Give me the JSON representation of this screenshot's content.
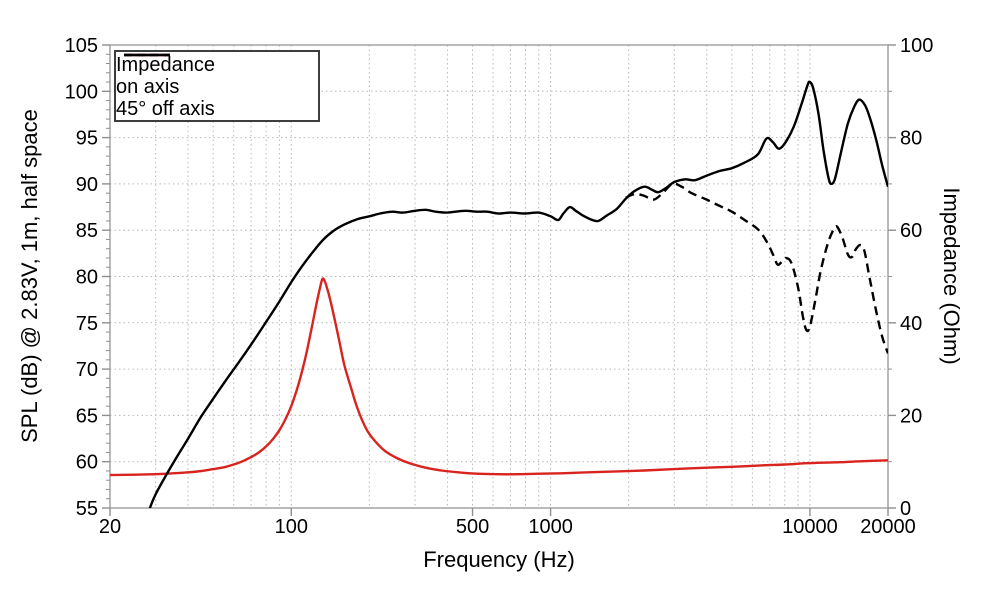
{
  "figure": {
    "background": "#ffffff",
    "frame_color": "#9c9c9c",
    "grid_color": "#b7b7b7",
    "tick_color": "#8f8f8f",
    "text_color": "#000000"
  },
  "chart_data": {
    "type": "line",
    "title": "",
    "x_axis": {
      "label": "Frequency (Hz)",
      "scale": "log",
      "min": 20,
      "max": 20000,
      "major_ticks": [
        20,
        100,
        500,
        1000,
        10000,
        20000
      ],
      "tick_labels": [
        "20",
        "100",
        "500",
        "1000",
        "10000",
        "20000"
      ]
    },
    "y_axis_left": {
      "label": "SPL (dB) @ 2.83V, 1m, half space",
      "min": 55,
      "max": 105,
      "major_step": 5,
      "minor_step": 1,
      "ticks": [
        55,
        60,
        65,
        70,
        75,
        80,
        85,
        90,
        95,
        100,
        105
      ]
    },
    "y_axis_right": {
      "label": "Impedance (Ohm)",
      "min": 0,
      "max": 100,
      "major_step": 20,
      "minor_step": 10,
      "ticks": [
        0,
        20,
        40,
        60,
        80,
        100
      ]
    },
    "grid": {
      "horizontal_db": [
        60,
        65,
        70,
        75,
        80,
        85,
        90,
        95,
        100
      ],
      "vertical": "log-minor"
    },
    "legend": {
      "position": "top-left",
      "entries": [
        {
          "label": "Impedance",
          "color": "#d9231e",
          "style": "solid"
        },
        {
          "label": "on axis",
          "color": "#000000",
          "style": "solid"
        },
        {
          "label": "45° off axis",
          "color": "#000000",
          "style": "dashed"
        }
      ]
    },
    "series": [
      {
        "name": "Impedance",
        "axis": "right",
        "unit": "Ohm",
        "color": "#d9231e",
        "style": "solid",
        "points": [
          [
            20,
            7.1
          ],
          [
            25,
            7.2
          ],
          [
            30,
            7.3
          ],
          [
            35,
            7.5
          ],
          [
            40,
            7.7
          ],
          [
            45,
            8.0
          ],
          [
            50,
            8.4
          ],
          [
            55,
            8.8
          ],
          [
            60,
            9.4
          ],
          [
            65,
            10.1
          ],
          [
            70,
            11.0
          ],
          [
            75,
            12.0
          ],
          [
            80,
            13.3
          ],
          [
            85,
            14.9
          ],
          [
            90,
            16.8
          ],
          [
            95,
            19.2
          ],
          [
            100,
            22.0
          ],
          [
            105,
            25.5
          ],
          [
            110,
            29.5
          ],
          [
            115,
            34.0
          ],
          [
            120,
            39.0
          ],
          [
            125,
            44.0
          ],
          [
            129,
            47.5
          ],
          [
            132,
            49.5
          ],
          [
            135,
            48.8
          ],
          [
            139,
            46.5
          ],
          [
            144,
            43.0
          ],
          [
            152,
            37.0
          ],
          [
            160,
            31.0
          ],
          [
            170,
            26.0
          ],
          [
            180,
            21.5
          ],
          [
            195,
            17.0
          ],
          [
            210,
            14.5
          ],
          [
            230,
            12.3
          ],
          [
            255,
            10.8
          ],
          [
            285,
            9.7
          ],
          [
            330,
            8.7
          ],
          [
            380,
            8.1
          ],
          [
            440,
            7.7
          ],
          [
            520,
            7.4
          ],
          [
            620,
            7.3
          ],
          [
            750,
            7.3
          ],
          [
            900,
            7.4
          ],
          [
            1100,
            7.5
          ],
          [
            1400,
            7.7
          ],
          [
            1800,
            7.9
          ],
          [
            2300,
            8.1
          ],
          [
            3000,
            8.4
          ],
          [
            4000,
            8.7
          ],
          [
            5000,
            8.9
          ],
          [
            6500,
            9.2
          ],
          [
            8000,
            9.4
          ],
          [
            10000,
            9.7
          ],
          [
            13000,
            9.9
          ],
          [
            16000,
            10.1
          ],
          [
            20000,
            10.3
          ]
        ]
      },
      {
        "name": "on axis",
        "axis": "left",
        "unit": "dB",
        "color": "#000000",
        "style": "solid",
        "points": [
          [
            27.5,
            53.5
          ],
          [
            28.5,
            55.0
          ],
          [
            30,
            56.5
          ],
          [
            33,
            58.6
          ],
          [
            36,
            60.4
          ],
          [
            40,
            62.5
          ],
          [
            45,
            64.9
          ],
          [
            50,
            66.8
          ],
          [
            56,
            68.8
          ],
          [
            63,
            70.8
          ],
          [
            71,
            72.9
          ],
          [
            80,
            75.1
          ],
          [
            90,
            77.3
          ],
          [
            100,
            79.4
          ],
          [
            110,
            81.1
          ],
          [
            120,
            82.5
          ],
          [
            132,
            83.9
          ],
          [
            145,
            84.9
          ],
          [
            160,
            85.6
          ],
          [
            180,
            86.2
          ],
          [
            200,
            86.5
          ],
          [
            220,
            86.8
          ],
          [
            245,
            87.0
          ],
          [
            270,
            86.9
          ],
          [
            300,
            87.1
          ],
          [
            330,
            87.2
          ],
          [
            360,
            87.0
          ],
          [
            395,
            86.9
          ],
          [
            430,
            87.0
          ],
          [
            470,
            87.1
          ],
          [
            520,
            87.0
          ],
          [
            570,
            87.0
          ],
          [
            630,
            86.8
          ],
          [
            700,
            86.9
          ],
          [
            800,
            86.8
          ],
          [
            900,
            86.9
          ],
          [
            1000,
            86.5
          ],
          [
            1070,
            86.1
          ],
          [
            1120,
            86.8
          ],
          [
            1185,
            87.5
          ],
          [
            1250,
            87.1
          ],
          [
            1330,
            86.6
          ],
          [
            1450,
            86.1
          ],
          [
            1530,
            86.0
          ],
          [
            1650,
            86.6
          ],
          [
            1800,
            87.3
          ],
          [
            1950,
            88.4
          ],
          [
            2100,
            89.2
          ],
          [
            2300,
            89.7
          ],
          [
            2450,
            89.4
          ],
          [
            2600,
            89.1
          ],
          [
            2800,
            89.6
          ],
          [
            3000,
            90.2
          ],
          [
            3300,
            90.5
          ],
          [
            3600,
            90.4
          ],
          [
            4000,
            90.9
          ],
          [
            4500,
            91.4
          ],
          [
            5000,
            91.7
          ],
          [
            5600,
            92.3
          ],
          [
            6300,
            93.2
          ],
          [
            6800,
            94.9
          ],
          [
            7200,
            94.5
          ],
          [
            7600,
            93.8
          ],
          [
            8100,
            94.6
          ],
          [
            8700,
            96.3
          ],
          [
            9300,
            98.7
          ],
          [
            9800,
            100.7
          ],
          [
            10000,
            101.0
          ],
          [
            10300,
            100.3
          ],
          [
            10800,
            97.5
          ],
          [
            11300,
            93.5
          ],
          [
            11800,
            90.6
          ],
          [
            12100,
            90.0
          ],
          [
            12500,
            90.6
          ],
          [
            13200,
            93.5
          ],
          [
            14000,
            96.5
          ],
          [
            14800,
            98.3
          ],
          [
            15500,
            99.1
          ],
          [
            16300,
            98.5
          ],
          [
            17000,
            97.2
          ],
          [
            18000,
            94.8
          ],
          [
            19000,
            92.0
          ],
          [
            20000,
            89.7
          ]
        ]
      },
      {
        "name": "45° off axis",
        "axis": "left",
        "unit": "dB",
        "color": "#000000",
        "style": "dashed",
        "points": [
          [
            1950,
            88.5
          ],
          [
            2050,
            88.8
          ],
          [
            2150,
            88.9
          ],
          [
            2300,
            88.7
          ],
          [
            2500,
            88.3
          ],
          [
            2700,
            89.0
          ],
          [
            2950,
            90.0
          ],
          [
            3200,
            89.7
          ],
          [
            3500,
            89.0
          ],
          [
            4000,
            88.3
          ],
          [
            4500,
            87.6
          ],
          [
            5000,
            87.0
          ],
          [
            5600,
            86.1
          ],
          [
            6300,
            85.1
          ],
          [
            6800,
            83.8
          ],
          [
            7200,
            82.4
          ],
          [
            7500,
            81.3
          ],
          [
            7800,
            81.6
          ],
          [
            8100,
            82.0
          ],
          [
            8500,
            81.4
          ],
          [
            9000,
            78.8
          ],
          [
            9400,
            75.6
          ],
          [
            9700,
            74.2
          ],
          [
            10000,
            74.6
          ],
          [
            10500,
            77.5
          ],
          [
            11000,
            80.6
          ],
          [
            11700,
            83.5
          ],
          [
            12300,
            85.0
          ],
          [
            12700,
            85.4
          ],
          [
            13300,
            84.3
          ],
          [
            14000,
            82.4
          ],
          [
            14500,
            82.1
          ],
          [
            15000,
            82.9
          ],
          [
            15600,
            83.4
          ],
          [
            16200,
            82.8
          ],
          [
            17000,
            79.8
          ],
          [
            18000,
            76.3
          ],
          [
            19000,
            73.5
          ],
          [
            20000,
            71.7
          ]
        ]
      }
    ]
  }
}
